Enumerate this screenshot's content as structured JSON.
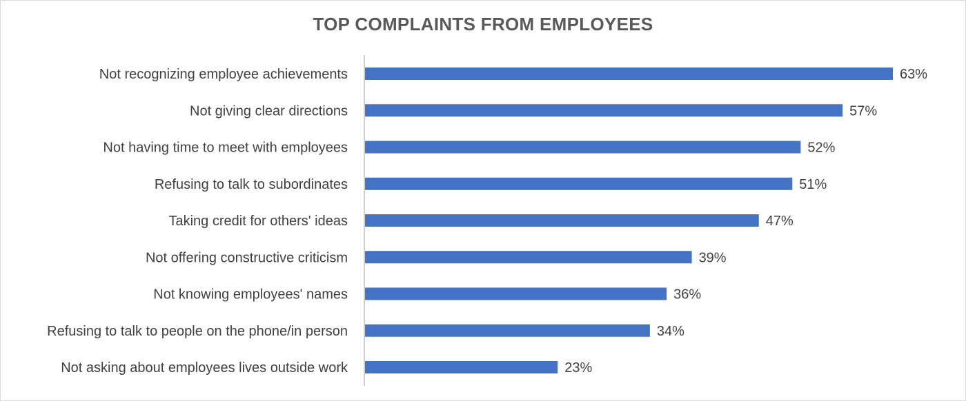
{
  "chart_data": {
    "type": "bar",
    "orientation": "horizontal",
    "title": "TOP COMPLAINTS FROM EMPLOYEES",
    "xlabel": "",
    "ylabel": "",
    "xlim": [
      0,
      70
    ],
    "grid": false,
    "bar_color": "#4472c4",
    "value_suffix": "%",
    "categories": [
      "Not recognizing employee achievements",
      "Not giving clear directions",
      "Not having time to meet with employees",
      "Refusing to talk to subordinates",
      "Taking credit for others' ideas",
      "Not offering constructive criticism",
      "Not knowing employees' names",
      "Refusing to talk to people on the phone/in person",
      "Not asking about employees lives outside work"
    ],
    "values": [
      63,
      57,
      52,
      51,
      47,
      39,
      36,
      34,
      23
    ],
    "value_labels": [
      "63%",
      "57%",
      "52%",
      "51%",
      "47%",
      "39%",
      "36%",
      "34%",
      "23%"
    ]
  }
}
